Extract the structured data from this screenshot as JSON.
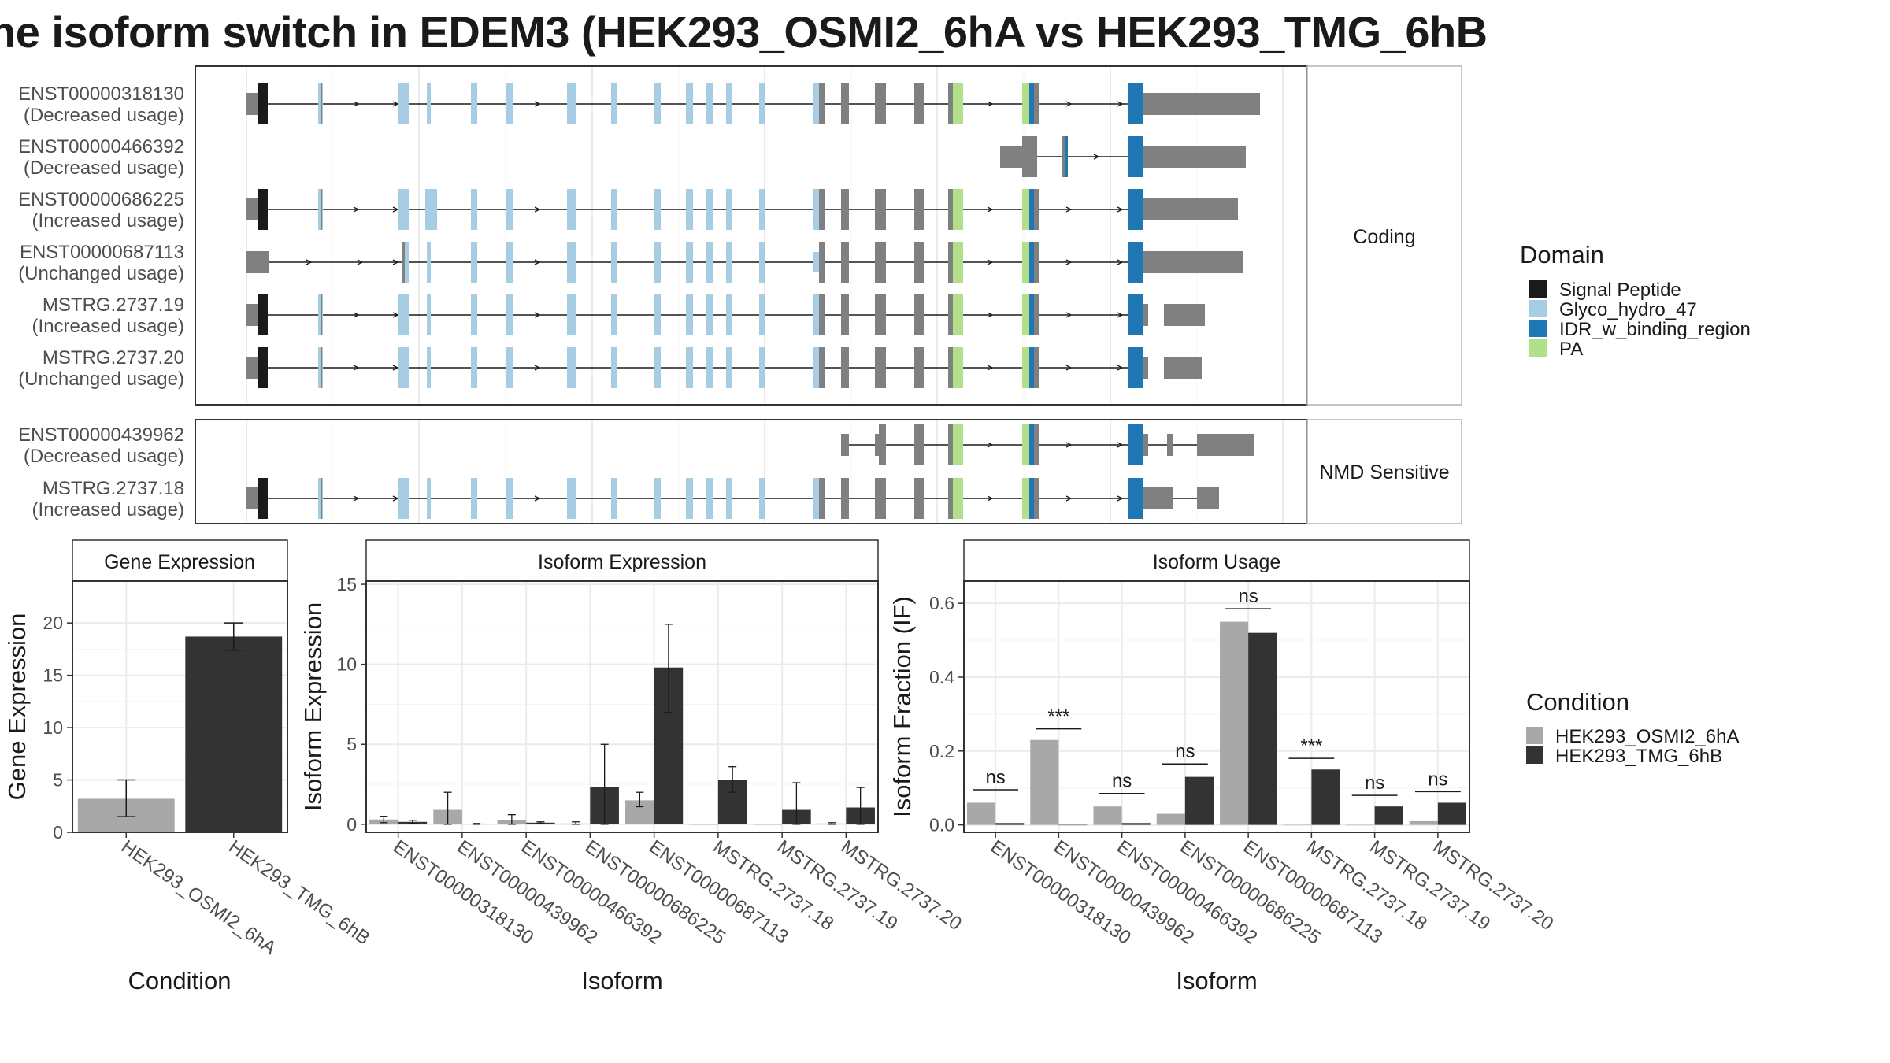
{
  "title": "he isoform switch in EDEM3 (HEK293_OSMI2_6hA vs HEK293_TMG_6hB",
  "colors": {
    "signal_peptide": "#1a1a1a",
    "glyco_hydro_47": "#a6cde3",
    "idr_w_binding_region": "#1f78b4",
    "pa": "#b2df8a",
    "exon_plain": "#808080",
    "condition_a": "#a8a8a8",
    "condition_b": "#333333",
    "grid": "#ebebeb",
    "panel_border": "#333333",
    "strip_border": "#b3b3b3"
  },
  "facets": {
    "coding_label": "Coding",
    "nmd_label": "NMD Sensitive"
  },
  "legend_domain": {
    "title": "Domain",
    "items": [
      {
        "label": "Signal Peptide",
        "color_key": "signal_peptide"
      },
      {
        "label": "Glyco_hydro_47",
        "color_key": "glyco_hydro_47"
      },
      {
        "label": "IDR_w_binding_region",
        "color_key": "idr_w_binding_region"
      },
      {
        "label": "PA",
        "color_key": "pa"
      }
    ]
  },
  "legend_condition": {
    "title": "Condition",
    "items": [
      {
        "label": "HEK293_OSMI2_6hA",
        "color_key": "condition_a"
      },
      {
        "label": "HEK293_TMG_6hB",
        "color_key": "condition_b"
      }
    ]
  },
  "transcripts": {
    "coding": [
      {
        "id": "ENST00000318130",
        "usage": "(Decreased usage)"
      },
      {
        "id": "ENST00000466392",
        "usage": "(Decreased usage)"
      },
      {
        "id": "ENST00000686225",
        "usage": "(Increased usage)"
      },
      {
        "id": "ENST00000687113",
        "usage": "(Unchanged usage)"
      },
      {
        "id": "MSTRG.2737.19",
        "usage": "(Increased usage)"
      },
      {
        "id": "MSTRG.2737.20",
        "usage": "(Unchanged usage)"
      }
    ],
    "nmd": [
      {
        "id": "ENST00000439962",
        "usage": "(Decreased usage)"
      },
      {
        "id": "MSTRG.2737.18",
        "usage": "(Increased usage)"
      }
    ]
  },
  "chart_data": [
    {
      "type": "bar",
      "title": "Gene Expression",
      "xlabel": "Condition",
      "ylabel": "Gene Expression",
      "ylim": [
        0,
        24
      ],
      "yticks": [
        0,
        5,
        10,
        15,
        20
      ],
      "categories": [
        "HEK293_OSMI2_6hA",
        "HEK293_TMG_6hB"
      ],
      "values": [
        3.2,
        18.7
      ],
      "errors": [
        [
          1.5,
          5.0
        ],
        [
          17.4,
          20.0
        ]
      ]
    },
    {
      "type": "bar",
      "title": "Isoform Expression",
      "xlabel": "Isoform",
      "ylabel": "Isoform Expression",
      "ylim": [
        -0.5,
        15.2
      ],
      "yticks": [
        0,
        5,
        10,
        15
      ],
      "categories": [
        "ENST00000318130",
        "ENST00000439962",
        "ENST00000466392",
        "ENST00000686225",
        "ENST00000687113",
        "MSTRG.2737.18",
        "MSTRG.2737.19",
        "MSTRG.2737.20"
      ],
      "series": [
        {
          "name": "HEK293_OSMI2_6hA",
          "values": [
            0.3,
            0.9,
            0.25,
            0.05,
            1.5,
            0.0,
            0.0,
            0.05
          ],
          "errors": [
            [
              0.1,
              0.5
            ],
            [
              0.0,
              2.0
            ],
            [
              0.0,
              0.6
            ],
            [
              0.0,
              0.15
            ],
            [
              1.1,
              2.0
            ],
            [
              0,
              0
            ],
            [
              0,
              0
            ],
            [
              0,
              0.1
            ]
          ]
        },
        {
          "name": "HEK293_TMG_6hB",
          "values": [
            0.15,
            0.02,
            0.1,
            2.35,
            9.8,
            2.75,
            0.9,
            1.05
          ],
          "errors": [
            [
              0.05,
              0.25
            ],
            [
              0,
              0.05
            ],
            [
              0.05,
              0.15
            ],
            [
              0.0,
              5.0
            ],
            [
              7.0,
              12.5
            ],
            [
              2.0,
              3.6
            ],
            [
              0.0,
              2.6
            ],
            [
              0.0,
              2.3
            ]
          ]
        }
      ]
    },
    {
      "type": "bar",
      "title": "Isoform Usage",
      "xlabel": "Isoform",
      "ylabel": "Isoform Fraction (IF)",
      "ylim": [
        -0.02,
        0.66
      ],
      "yticks": [
        0.0,
        0.2,
        0.4,
        0.6
      ],
      "ytick_labels": [
        "0.0",
        "0.2",
        "0.4",
        "0.6"
      ],
      "categories": [
        "ENST00000318130",
        "ENST00000439962",
        "ENST00000466392",
        "ENST00000686225",
        "ENST00000687113",
        "MSTRG.2737.18",
        "MSTRG.2737.19",
        "MSTRG.2737.20"
      ],
      "series": [
        {
          "name": "HEK293_OSMI2_6hA",
          "values": [
            0.06,
            0.23,
            0.05,
            0.03,
            0.55,
            0.0,
            0.0,
            0.01
          ]
        },
        {
          "name": "HEK293_TMG_6hB",
          "values": [
            0.005,
            0.0,
            0.005,
            0.13,
            0.52,
            0.15,
            0.05,
            0.06
          ]
        }
      ],
      "significance": [
        {
          "category": "ENST00000318130",
          "label": "ns",
          "y": 0.095
        },
        {
          "category": "ENST00000439962",
          "label": "***",
          "y": 0.26
        },
        {
          "category": "ENST00000466392",
          "label": "ns",
          "y": 0.085
        },
        {
          "category": "ENST00000686225",
          "label": "ns",
          "y": 0.165
        },
        {
          "category": "ENST00000687113",
          "label": "ns",
          "y": 0.585
        },
        {
          "category": "MSTRG.2737.18",
          "label": "***",
          "y": 0.18
        },
        {
          "category": "MSTRG.2737.19",
          "label": "ns",
          "y": 0.08
        },
        {
          "category": "MSTRG.2737.20",
          "label": "ns",
          "y": 0.09
        }
      ]
    }
  ]
}
